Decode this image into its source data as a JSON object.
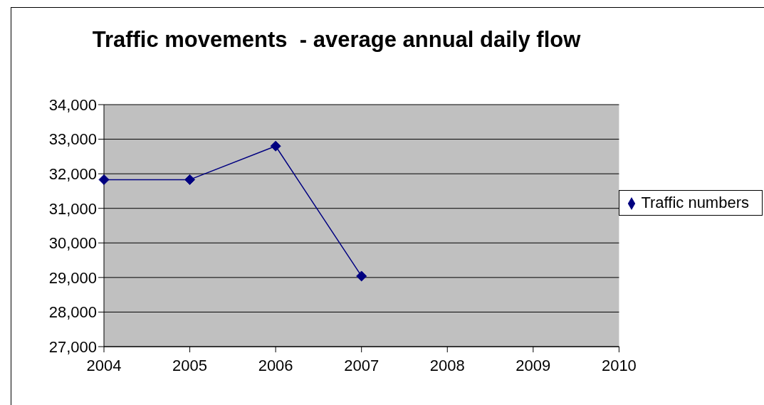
{
  "chart_data": {
    "type": "line",
    "title": "Traffic movements  - average annual daily flow",
    "categories": [
      "2004",
      "2005",
      "2006",
      "2007",
      "2008",
      "2009",
      "2010"
    ],
    "series": [
      {
        "name": "Traffic numbers",
        "color": "#000080",
        "values": [
          31830,
          31830,
          32800,
          29040,
          null,
          null,
          null
        ]
      }
    ],
    "ylim": [
      27000,
      34000
    ],
    "yticks": [
      {
        "value": 27000,
        "label": "27,000"
      },
      {
        "value": 28000,
        "label": "28,000"
      },
      {
        "value": 29000,
        "label": "29,000"
      },
      {
        "value": 30000,
        "label": "30,000"
      },
      {
        "value": 31000,
        "label": "31,000"
      },
      {
        "value": 32000,
        "label": "32,000"
      },
      {
        "value": 33000,
        "label": "33,000"
      },
      {
        "value": 34000,
        "label": "34,000"
      }
    ],
    "grid": "y",
    "legend": "right",
    "marker": "diamond",
    "line_style": "solid"
  }
}
